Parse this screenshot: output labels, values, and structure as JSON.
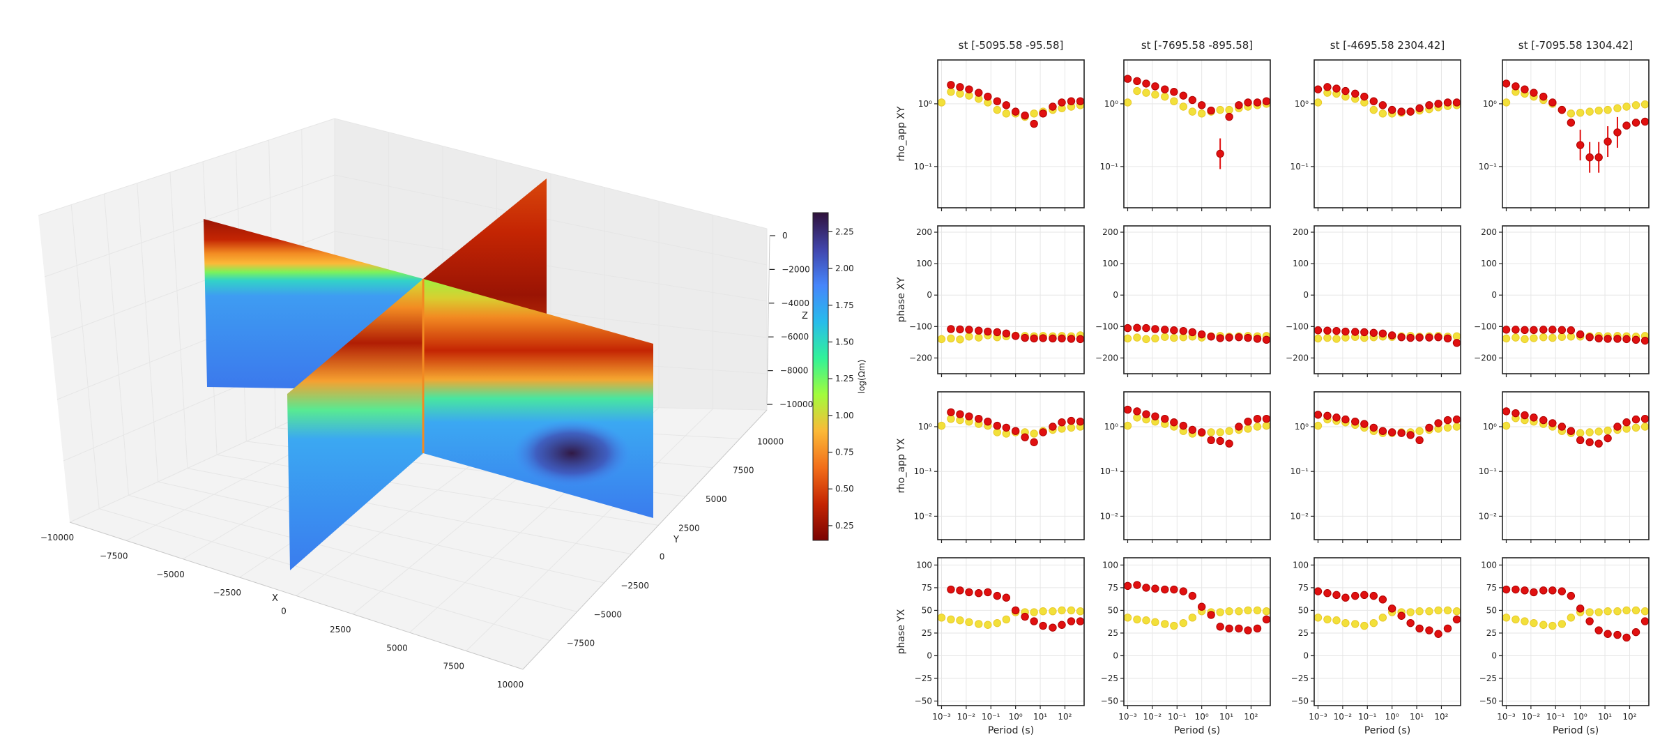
{
  "figure": {
    "colors": {
      "obs": "#f2e03a",
      "obs_edge": "#e9c92a",
      "model": "#e01010",
      "model_edge": "#b00000"
    }
  },
  "volume_plot": {
    "x_ticks": [
      "−10000",
      "−7500",
      "−5000",
      "−2500",
      "0",
      "2500",
      "5000",
      "7500",
      "10000"
    ],
    "y_ticks": [
      "−7500",
      "−5000",
      "−2500",
      "0",
      "2500",
      "5000",
      "7500",
      "10000"
    ],
    "z_ticks": [
      "0",
      "−2000",
      "−4000",
      "−6000",
      "−8000",
      "−10000"
    ],
    "x_label": "X",
    "y_label": "Y",
    "z_label": "Z",
    "colorbar": {
      "ticks": [
        "2.25",
        "2.00",
        "1.75",
        "1.50",
        "1.25",
        "1.00",
        "0.75",
        "0.50",
        "0.25"
      ],
      "label": "log(Ωm)",
      "range": [
        0.15,
        2.38
      ],
      "colormap": [
        "#7a0403",
        "#c42503",
        "#f26e1a",
        "#fbb938",
        "#a2fc3c",
        "#32f298",
        "#28bceb",
        "#4686fb",
        "#4145ab",
        "#30123b"
      ]
    }
  },
  "chart_data": {
    "type": "scatter",
    "x_scale": "log",
    "xlabel": "Period (s)",
    "periods": [
      0.001,
      0.0024,
      0.0056,
      0.013,
      0.032,
      0.075,
      0.18,
      0.42,
      1.0,
      2.4,
      5.6,
      13,
      32,
      75,
      180,
      420
    ],
    "x_ticks": [
      "10⁻³",
      "10⁻²",
      "10⁻¹",
      "10⁰",
      "10¹",
      "10²"
    ],
    "row_labels": [
      "rho_app XY",
      "phase XY",
      "rho_app YX",
      "phase YX"
    ],
    "row_ylims": [
      [
        0.022,
        5.0
      ],
      [
        -250,
        220
      ],
      [
        0.003,
        6.0
      ],
      [
        -55,
        108
      ]
    ],
    "row_yticks": [
      [
        "10⁰",
        "10⁻¹"
      ],
      [
        "200",
        "100",
        "0",
        "−100",
        "−200"
      ],
      [
        "10⁰",
        "10⁻¹",
        "10⁻²"
      ],
      [
        "100",
        "75",
        "50",
        "25",
        "0",
        "−25",
        "−50"
      ]
    ],
    "stations": [
      {
        "title": "st [-5095.58   -95.58]",
        "rho_xy": {
          "obs": [
            1.05,
            1.55,
            1.45,
            1.35,
            1.2,
            1.05,
            0.8,
            0.7,
            0.7,
            0.62,
            0.7,
            0.75,
            0.8,
            0.85,
            0.9,
            0.95
          ],
          "model": [
            null,
            2.0,
            1.85,
            1.7,
            1.5,
            1.3,
            1.1,
            0.95,
            0.75,
            0.65,
            0.48,
            0.7,
            0.9,
            1.05,
            1.1,
            1.1
          ]
        },
        "phase_xy": {
          "obs": [
            -140,
            -138,
            -141,
            -132,
            -135,
            -128,
            -134,
            -131,
            -129,
            -130,
            -131,
            -130,
            -131,
            -130,
            -131,
            -128
          ],
          "model": [
            null,
            -108,
            -109,
            -110,
            -113,
            -116,
            -118,
            -122,
            -130,
            -136,
            -138,
            -137,
            -138,
            -138,
            -139,
            -140
          ]
        },
        "rho_yx": {
          "obs": [
            1.05,
            1.5,
            1.4,
            1.3,
            1.15,
            1.05,
            0.75,
            0.7,
            0.75,
            0.75,
            0.7,
            0.8,
            0.85,
            0.9,
            0.95,
            1.0
          ],
          "model": [
            null,
            2.1,
            1.9,
            1.7,
            1.5,
            1.3,
            1.05,
            0.95,
            0.8,
            0.58,
            0.45,
            0.75,
            1.0,
            1.25,
            1.35,
            1.3
          ]
        },
        "phase_yx": {
          "obs": [
            42,
            40,
            39,
            37,
            35,
            34,
            36,
            40,
            48,
            48,
            48,
            49,
            49,
            50,
            50,
            49
          ],
          "model": [
            null,
            73,
            72,
            70,
            69,
            70,
            66,
            64,
            50,
            43,
            38,
            33,
            31,
            34,
            38,
            38
          ]
        }
      },
      {
        "title": "st [-7695.58  -895.58]",
        "rho_xy": {
          "obs": [
            1.05,
            1.6,
            1.5,
            1.4,
            1.3,
            1.1,
            0.9,
            0.75,
            0.7,
            0.75,
            0.8,
            0.8,
            0.85,
            0.9,
            0.95,
            1.0
          ],
          "model": [
            2.5,
            2.3,
            2.1,
            1.9,
            1.7,
            1.55,
            1.35,
            1.15,
            0.95,
            0.78,
            0.16,
            0.62,
            0.95,
            1.05,
            1.05,
            1.1
          ]
        },
        "phase_xy": {
          "obs": [
            -138,
            -135,
            -140,
            -138,
            -133,
            -136,
            -134,
            -132,
            -135,
            -131,
            -130,
            -132,
            -131,
            -130,
            -131,
            -130
          ],
          "model": [
            -105,
            -104,
            -105,
            -108,
            -110,
            -112,
            -114,
            -118,
            -125,
            -132,
            -137,
            -135,
            -134,
            -136,
            -139,
            -142
          ]
        },
        "rho_yx": {
          "obs": [
            1.05,
            1.6,
            1.45,
            1.3,
            1.15,
            1.0,
            0.8,
            0.7,
            0.72,
            0.75,
            0.75,
            0.8,
            0.85,
            0.9,
            1.0,
            1.05
          ],
          "model": [
            2.4,
            2.2,
            1.9,
            1.7,
            1.5,
            1.25,
            1.05,
            0.85,
            0.75,
            0.5,
            0.48,
            0.42,
            1.0,
            1.3,
            1.5,
            1.5
          ]
        },
        "phase_yx": {
          "obs": [
            42,
            40,
            39,
            37,
            35,
            33,
            36,
            42,
            49,
            48,
            48,
            49,
            49,
            50,
            50,
            49
          ],
          "model": [
            77,
            78,
            75,
            74,
            73,
            73,
            71,
            66,
            54,
            45,
            32,
            30,
            30,
            28,
            30,
            40
          ]
        }
      },
      {
        "title": "st [-4695.58  2304.42]",
        "rho_xy": {
          "obs": [
            1.05,
            1.5,
            1.45,
            1.3,
            1.2,
            1.05,
            0.8,
            0.7,
            0.7,
            0.72,
            0.75,
            0.78,
            0.82,
            0.88,
            0.92,
            0.95
          ],
          "model": [
            1.7,
            1.85,
            1.75,
            1.6,
            1.45,
            1.3,
            1.1,
            0.95,
            0.8,
            0.75,
            0.75,
            0.85,
            0.95,
            1.0,
            1.05,
            1.05
          ]
        },
        "phase_xy": {
          "obs": [
            -138,
            -136,
            -139,
            -135,
            -133,
            -136,
            -134,
            -132,
            -133,
            -131,
            -130,
            -132,
            -131,
            -130,
            -132,
            -131
          ],
          "model": [
            -112,
            -113,
            -114,
            -116,
            -117,
            -118,
            -120,
            -122,
            -128,
            -134,
            -136,
            -135,
            -135,
            -134,
            -138,
            -152
          ]
        },
        "rho_yx": {
          "obs": [
            1.05,
            1.45,
            1.35,
            1.25,
            1.1,
            0.95,
            0.8,
            0.72,
            0.72,
            0.75,
            0.75,
            0.8,
            0.85,
            0.9,
            0.95,
            1.0
          ],
          "model": [
            1.85,
            1.75,
            1.6,
            1.45,
            1.3,
            1.15,
            0.95,
            0.8,
            0.75,
            0.72,
            0.65,
            0.5,
            0.95,
            1.2,
            1.4,
            1.45
          ]
        },
        "phase_yx": {
          "obs": [
            42,
            40,
            39,
            36,
            35,
            33,
            36,
            42,
            48,
            48,
            48,
            49,
            49,
            50,
            50,
            49
          ],
          "model": [
            71,
            69,
            67,
            64,
            66,
            67,
            66,
            62,
            52,
            44,
            36,
            30,
            28,
            24,
            30,
            40
          ]
        }
      },
      {
        "title": "st [-7095.58  1304.42]",
        "rho_xy": {
          "obs": [
            1.05,
            1.55,
            1.45,
            1.3,
            1.15,
            1.0,
            0.8,
            0.7,
            0.72,
            0.75,
            0.78,
            0.8,
            0.85,
            0.9,
            0.95,
            0.98
          ],
          "model": [
            2.1,
            1.9,
            1.7,
            1.5,
            1.3,
            1.05,
            0.8,
            0.5,
            0.22,
            0.14,
            0.14,
            0.25,
            0.35,
            0.45,
            0.5,
            0.52
          ]
        },
        "phase_xy": {
          "obs": [
            -138,
            -135,
            -140,
            -137,
            -134,
            -136,
            -133,
            -132,
            -132,
            -131,
            -130,
            -131,
            -130,
            -131,
            -132,
            -130
          ],
          "model": [
            -110,
            -110,
            -111,
            -111,
            -110,
            -110,
            -111,
            -112,
            -125,
            -134,
            -138,
            -139,
            -139,
            -140,
            -142,
            -145
          ]
        },
        "rho_yx": {
          "obs": [
            1.05,
            1.55,
            1.4,
            1.3,
            1.15,
            1.0,
            0.8,
            0.72,
            0.72,
            0.75,
            0.78,
            0.82,
            0.85,
            0.9,
            0.95,
            1.0
          ],
          "model": [
            2.2,
            2.0,
            1.8,
            1.6,
            1.4,
            1.2,
            1.0,
            0.8,
            0.5,
            0.45,
            0.42,
            0.55,
            1.0,
            1.25,
            1.45,
            1.5
          ]
        },
        "phase_yx": {
          "obs": [
            42,
            40,
            38,
            36,
            34,
            33,
            35,
            42,
            48,
            48,
            48,
            49,
            49,
            50,
            50,
            49
          ],
          "model": [
            73,
            73,
            72,
            70,
            72,
            72,
            71,
            66,
            52,
            38,
            28,
            24,
            23,
            20,
            26,
            38
          ]
        }
      }
    ]
  }
}
